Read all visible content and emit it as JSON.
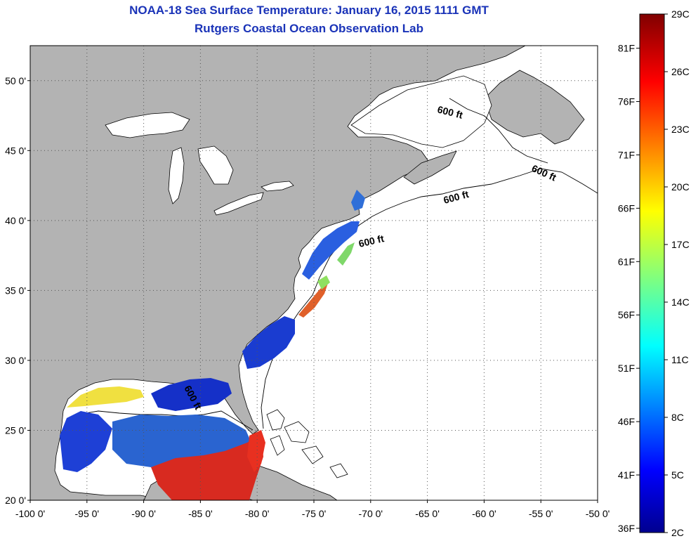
{
  "header": {
    "title": "NOAA-18 Sea Surface Temperature:  January 16, 2015 1111 GMT",
    "subtitle": "Rutgers Coastal Ocean Observation Lab"
  },
  "map": {
    "lon_range": [
      -100,
      -50
    ],
    "lat_range": [
      20,
      52.5
    ],
    "x_ticks": [
      "-100 0'",
      "-95 0'",
      "-90 0'",
      "-85 0'",
      "-80 0'",
      "-75 0'",
      "-70 0'",
      "-65 0'",
      "-60 0'",
      "-55 0'",
      "-50 0'"
    ],
    "y_ticks": [
      "20 0'",
      "25 0'",
      "30 0'",
      "35 0'",
      "40 0'",
      "45 0'",
      "50 0'"
    ],
    "land_color": "#b3b3b3",
    "ocean_color": "#ffffff",
    "isobath_labels": [
      "600 ft",
      "600 ft",
      "600 ft",
      "600 ft",
      "600 ft"
    ]
  },
  "colorbar": {
    "fahrenheit_labels": [
      "81F",
      "76F",
      "71F",
      "66F",
      "61F",
      "56F",
      "51F",
      "46F",
      "41F",
      "36F"
    ],
    "celsius_labels": [
      "29C",
      "26C",
      "23C",
      "20C",
      "17C",
      "14C",
      "11C",
      "8C",
      "5C",
      "2C"
    ],
    "range_c": [
      2,
      29
    ]
  }
}
